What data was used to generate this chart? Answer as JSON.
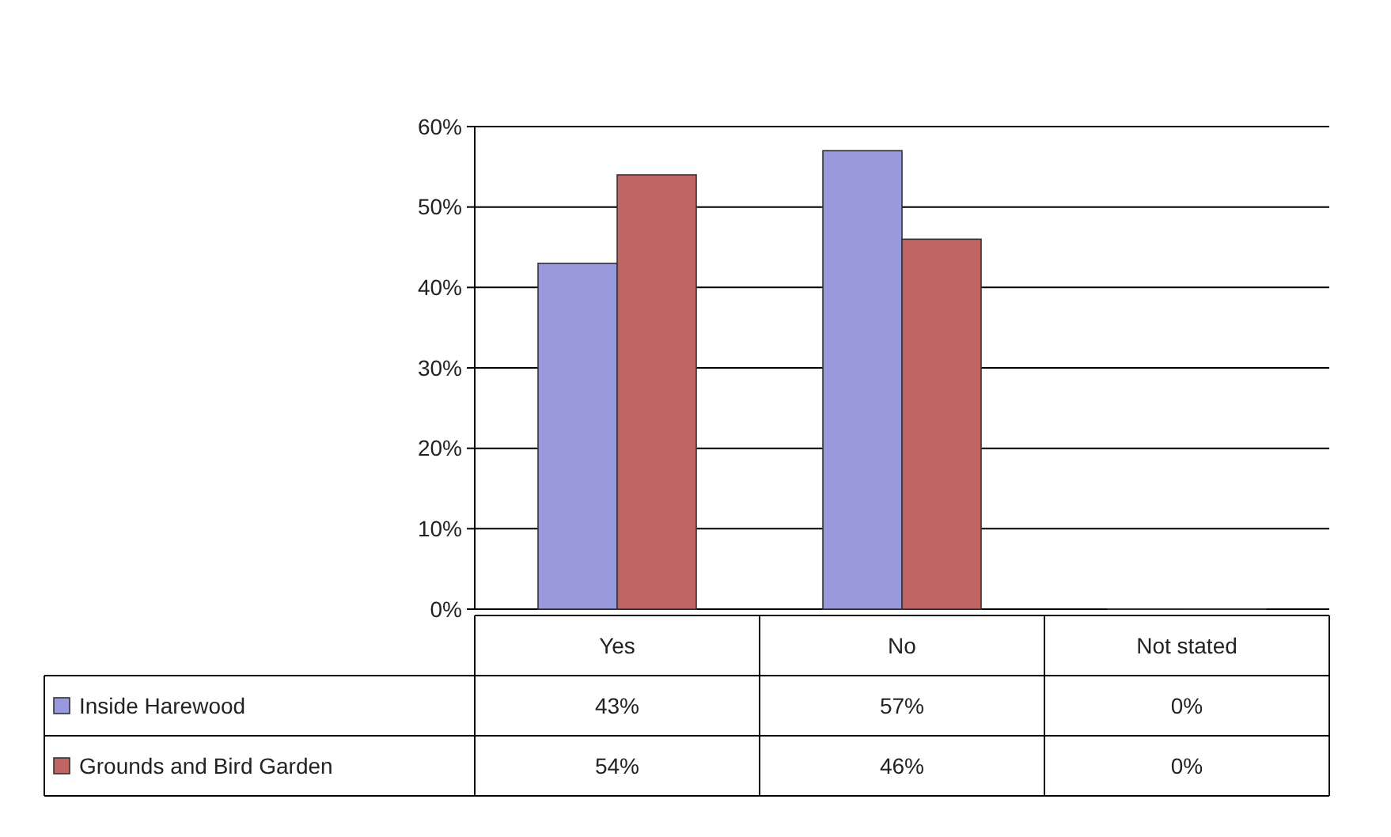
{
  "chart_data": {
    "type": "bar",
    "categories": [
      "Yes",
      "No",
      "Not stated"
    ],
    "series": [
      {
        "name": "Inside Harewood",
        "color": "#9999dd",
        "values": [
          43,
          57,
          0
        ],
        "value_labels": [
          "43%",
          "57%",
          "0%"
        ]
      },
      {
        "name": "Grounds and Bird Garden",
        "color": "#c06464",
        "values": [
          54,
          46,
          0
        ],
        "value_labels": [
          "54%",
          "46%",
          "0%"
        ]
      }
    ],
    "ylim": [
      0,
      60
    ],
    "yticks": [
      {
        "value": 0,
        "label": "0%"
      },
      {
        "value": 10,
        "label": "10%"
      },
      {
        "value": 20,
        "label": "20%"
      },
      {
        "value": 30,
        "label": "30%"
      },
      {
        "value": 40,
        "label": "40%"
      },
      {
        "value": 50,
        "label": "50%"
      },
      {
        "value": 60,
        "label": "60%"
      }
    ],
    "grid": "y",
    "legend": "bottom left"
  }
}
